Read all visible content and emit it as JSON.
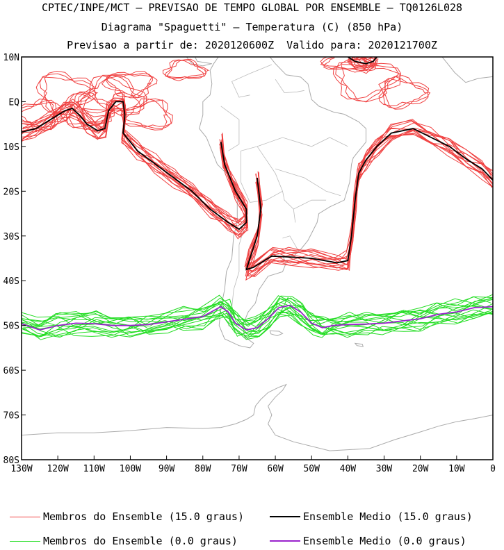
{
  "header": {
    "line1": "CPTEC/INPE/MCT – PREVISAO DE TEMPO GLOBAL POR ENSEMBLE – TQ0126L028",
    "line2": "Diagrama \"Spaguetti\" – Temperatura (C) (850 hPa)",
    "line3": "Previsao a partir de: 2020120600Z  Valido para: 2020121700Z"
  },
  "axes": {
    "lat_labels": [
      "10N",
      "EQ",
      "10S",
      "20S",
      "30S",
      "40S",
      "50S",
      "60S",
      "70S",
      "80S"
    ],
    "lat_values": [
      10,
      0,
      -10,
      -20,
      -30,
      -40,
      -50,
      -60,
      -70,
      -80
    ],
    "lon_labels": [
      "130W",
      "120W",
      "110W",
      "100W",
      "90W",
      "80W",
      "70W",
      "60W",
      "50W",
      "40W",
      "30W",
      "20W",
      "10W",
      "0"
    ],
    "lon_values": [
      -130,
      -120,
      -110,
      -100,
      -90,
      -80,
      -70,
      -60,
      -50,
      -40,
      -30,
      -20,
      -10,
      0
    ]
  },
  "legend": {
    "members_15": "Membros do Ensemble (15.0 graus)",
    "mean_15": "Ensemble Medio (15.0 graus)",
    "members_0": "Membros do Ensemble (0.0 graus)",
    "mean_0": "Ensemble Medio (0.0 graus)"
  },
  "colors": {
    "members_15": "#f04040",
    "mean_15": "#000000",
    "members_0": "#22dd22",
    "mean_0": "#9922cc",
    "land": "#aaaaaa"
  },
  "chart_data": {
    "type": "spaghetti-contour-map",
    "title": "Diagrama \"Spaguetti\" – Temperatura (C) (850 hPa)",
    "lon_range": [
      -130,
      0
    ],
    "lat_range": [
      -80,
      10
    ],
    "contour_levels_c": [
      15.0,
      0.0
    ],
    "series": [
      {
        "name": "Ensemble Medio (0.0 graus)",
        "points": [
          [
            -130,
            -49.6
          ],
          [
            -125,
            -51
          ],
          [
            -120,
            -50
          ],
          [
            -115,
            -49.5
          ],
          [
            -110,
            -49.6
          ],
          [
            -105,
            -50
          ],
          [
            -100,
            -50
          ],
          [
            -95,
            -49.8
          ],
          [
            -90,
            -49.2
          ],
          [
            -85,
            -48.6
          ],
          [
            -80,
            -48
          ],
          [
            -75,
            -45.8
          ],
          [
            -73,
            -47
          ],
          [
            -71,
            -49.5
          ],
          [
            -68,
            -51
          ],
          [
            -65,
            -50.5
          ],
          [
            -62,
            -48.5
          ],
          [
            -59,
            -46
          ],
          [
            -56,
            -45.5
          ],
          [
            -53,
            -47
          ],
          [
            -50,
            -49.5
          ],
          [
            -47,
            -50.5
          ],
          [
            -44,
            -50
          ],
          [
            -40,
            -49.8
          ],
          [
            -35,
            -49.7
          ],
          [
            -30,
            -49.5
          ],
          [
            -25,
            -49
          ],
          [
            -20,
            -48.5
          ],
          [
            -15,
            -47.5
          ],
          [
            -10,
            -47
          ],
          [
            -5,
            -46
          ],
          [
            0,
            -45.8
          ]
        ]
      },
      {
        "name": "Ensemble Medio (15.0 graus) - Pacific",
        "points": [
          [
            -130,
            -6.8
          ],
          [
            -126,
            -6
          ],
          [
            -122,
            -4
          ],
          [
            -118,
            -2
          ],
          [
            -116,
            -1.5
          ],
          [
            -114,
            -3
          ],
          [
            -112,
            -5
          ],
          [
            -109,
            -6.5
          ],
          [
            -107,
            -6
          ],
          [
            -106,
            -2
          ],
          [
            -104,
            0
          ],
          [
            -102,
            0
          ],
          [
            -101.5,
            -3
          ],
          [
            -102,
            -7
          ],
          [
            -98,
            -11
          ],
          [
            -93,
            -14
          ],
          [
            -88,
            -17
          ],
          [
            -83,
            -20
          ],
          [
            -78,
            -24
          ],
          [
            -73,
            -27
          ],
          [
            -70,
            -28.5
          ],
          [
            -68,
            -27
          ],
          [
            -68,
            -24
          ],
          [
            -71,
            -20
          ],
          [
            -74,
            -14
          ],
          [
            -75,
            -9
          ]
        ]
      },
      {
        "name": "Ensemble Medio (15.0 graus) - Atlantic",
        "points": [
          [
            -65,
            -17
          ],
          [
            -64,
            -24
          ],
          [
            -65,
            -30
          ],
          [
            -67,
            -35
          ],
          [
            -68,
            -37.5
          ],
          [
            -66,
            -37
          ],
          [
            -61,
            -34.5
          ],
          [
            -56,
            -34.7
          ],
          [
            -50,
            -35
          ],
          [
            -43,
            -36
          ],
          [
            -40,
            -35.5
          ],
          [
            -39,
            -30
          ],
          [
            -38,
            -22
          ],
          [
            -37,
            -16
          ],
          [
            -35,
            -13
          ],
          [
            -32,
            -10
          ],
          [
            -28,
            -7
          ],
          [
            -22,
            -6
          ],
          [
            -17,
            -8
          ],
          [
            -12,
            -10
          ],
          [
            -7,
            -13
          ],
          [
            -3,
            -15
          ],
          [
            0,
            -17.5
          ]
        ]
      },
      {
        "name": "Ensemble Medio (15.0 graus) - North Atlantic",
        "points": [
          [
            -40,
            10
          ],
          [
            -38,
            9
          ],
          [
            -35,
            8.5
          ],
          [
            -33,
            9
          ],
          [
            -32,
            10
          ]
        ]
      }
    ]
  }
}
